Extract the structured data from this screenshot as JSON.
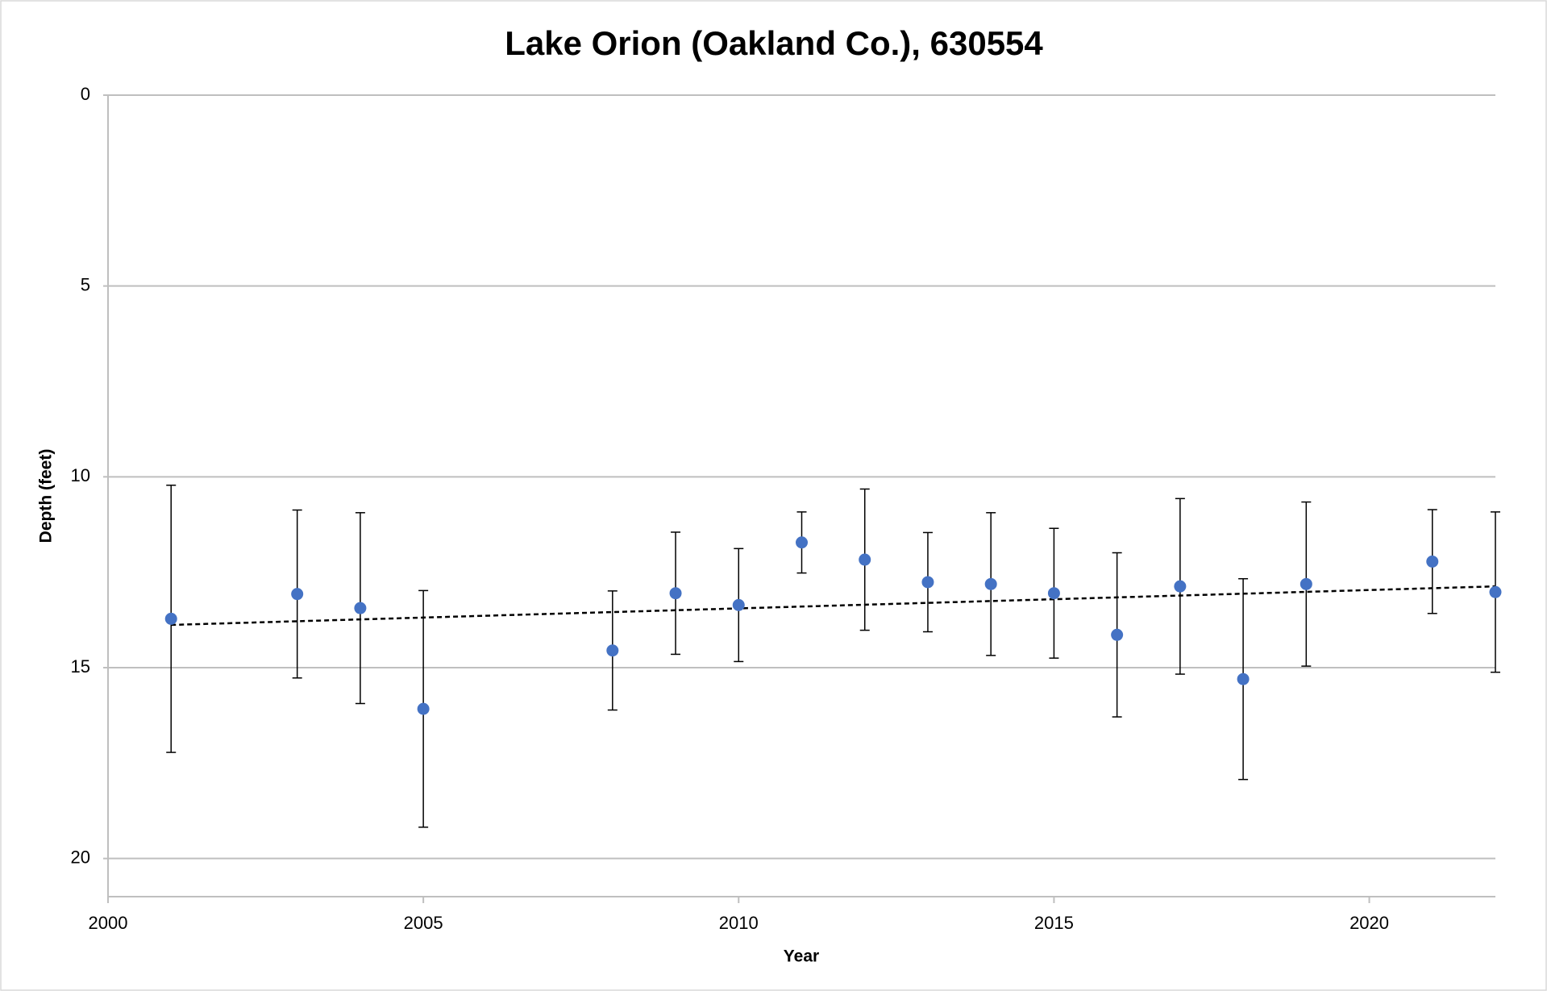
{
  "chart_data": {
    "type": "scatter",
    "title": "Lake Orion (Oakland Co.), 630554",
    "x_label": "Year",
    "y_label": "Depth (feet)",
    "x": [
      2001,
      2003,
      2004,
      2005,
      2008,
      2009,
      2010,
      2011,
      2012,
      2013,
      2014,
      2015,
      2016,
      2017,
      2018,
      2019,
      2021,
      2022
    ],
    "values": [
      13.72,
      13.07,
      13.44,
      16.08,
      14.55,
      13.05,
      13.36,
      11.72,
      12.17,
      12.76,
      12.81,
      13.05,
      14.14,
      12.87,
      15.3,
      12.81,
      12.22,
      13.02
    ],
    "errors": [
      3.5,
      2.2,
      2.5,
      3.1,
      1.56,
      1.6,
      1.48,
      0.8,
      1.85,
      1.3,
      1.87,
      1.7,
      2.15,
      2.3,
      2.63,
      2.15,
      1.36,
      2.1
    ],
    "color": "#4472c4",
    "trendline": {
      "x": [
        2001,
        2022
      ],
      "values": [
        13.88,
        12.87
      ],
      "color": "#000000"
    },
    "xlim": [
      2000,
      2022
    ],
    "xticks": [
      2000,
      2005,
      2010,
      2015,
      2020
    ],
    "ylim": [
      0,
      21
    ],
    "yticks": [
      0,
      5,
      10,
      15,
      20
    ],
    "y_inverted": true,
    "grid": true
  }
}
